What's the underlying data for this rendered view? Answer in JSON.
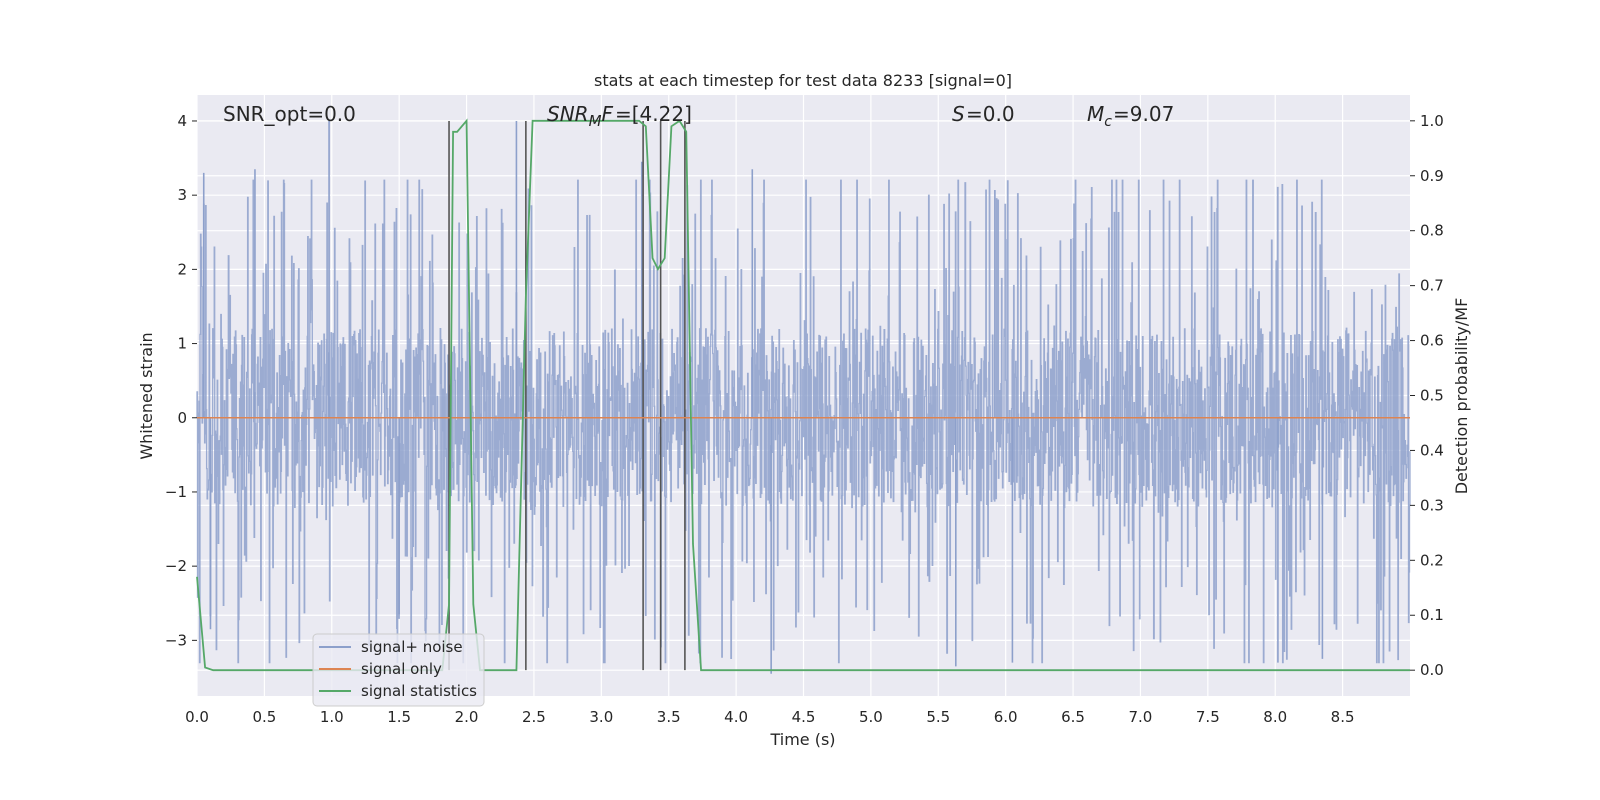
{
  "chart_data": {
    "type": "line",
    "title": "stats at each timestep for test data 8233 [signal=0]",
    "xlabel": "Time (s)",
    "ylabel_left": "Whitened strain",
    "ylabel_right": "Detection probability/MF",
    "xlim": [
      0.0,
      9.0
    ],
    "ylim_left": [
      -3.75,
      4.35
    ],
    "ylim_right": [
      -0.047,
      1.047
    ],
    "x_ticks": [
      "0.0",
      "0.5",
      "1.0",
      "1.5",
      "2.0",
      "2.5",
      "3.0",
      "3.5",
      "4.0",
      "4.5",
      "5.0",
      "5.5",
      "6.0",
      "6.5",
      "7.0",
      "7.5",
      "8.0",
      "8.5"
    ],
    "y_left_ticks": [
      "−3",
      "−2",
      "−1",
      "0",
      "1",
      "2",
      "3",
      "4"
    ],
    "y_right_ticks": [
      "0.0",
      "0.1",
      "0.2",
      "0.3",
      "0.4",
      "0.5",
      "0.6",
      "0.7",
      "0.8",
      "0.9",
      "1.0"
    ],
    "grid": true,
    "legend_position": "lower-left",
    "annotations": {
      "snr_opt": "SNR_opt=0.0",
      "snr_mf": "=[4.22]",
      "s_val": "=0.0",
      "mc_val": "=9.07"
    },
    "vertical_lines_x": [
      1.87,
      2.44,
      3.31,
      3.44,
      3.62
    ],
    "series": [
      {
        "name": "signal+ noise",
        "axis": "left",
        "color": "#8da0cb",
        "style": "dense noise, amplitude envelope ±1 to peaks ±3.5",
        "noise_peaks": [
          {
            "x": 0.05,
            "y": 3.3
          },
          {
            "x": 0.43,
            "y": 3.35
          },
          {
            "x": 0.98,
            "y": 4.0
          },
          {
            "x": 2.37,
            "y": 4.0
          },
          {
            "x": 3.3,
            "y": 3.45
          },
          {
            "x": 4.12,
            "y": 3.35
          },
          {
            "x": 5.92,
            "y": 3.07
          },
          {
            "x": 4.26,
            "y": -3.45
          },
          {
            "x": 5.63,
            "y": -3.35
          },
          {
            "x": 6.05,
            "y": -3.3
          },
          {
            "x": 8.02,
            "y": -3.3
          },
          {
            "x": 8.35,
            "y": -3.25
          },
          {
            "x": 0.1,
            "y": -2.85
          },
          {
            "x": 1.5,
            "y": -2.65
          }
        ]
      },
      {
        "name": "signal only",
        "axis": "left",
        "color": "#dd8452",
        "x": [
          0.0,
          9.0
        ],
        "values": [
          0.0,
          0.0
        ]
      },
      {
        "name": "signal statistics",
        "axis": "right",
        "color": "#55a868",
        "x": [
          0.0,
          0.06,
          0.12,
          1.82,
          1.87,
          1.9,
          1.93,
          2.0,
          2.05,
          2.1,
          2.2,
          2.37,
          2.44,
          2.49,
          2.6,
          3.0,
          3.28,
          3.33,
          3.38,
          3.42,
          3.47,
          3.52,
          3.58,
          3.63,
          3.68,
          3.74,
          3.8,
          9.0
        ],
        "values": [
          0.17,
          0.005,
          0.0,
          0.0,
          0.12,
          0.98,
          0.98,
          1.0,
          0.12,
          0.0,
          0.0,
          0.0,
          0.68,
          1.0,
          1.0,
          1.0,
          1.0,
          0.99,
          0.75,
          0.73,
          0.75,
          0.99,
          1.0,
          0.98,
          0.23,
          0.0,
          0.0,
          0.0
        ]
      }
    ]
  }
}
